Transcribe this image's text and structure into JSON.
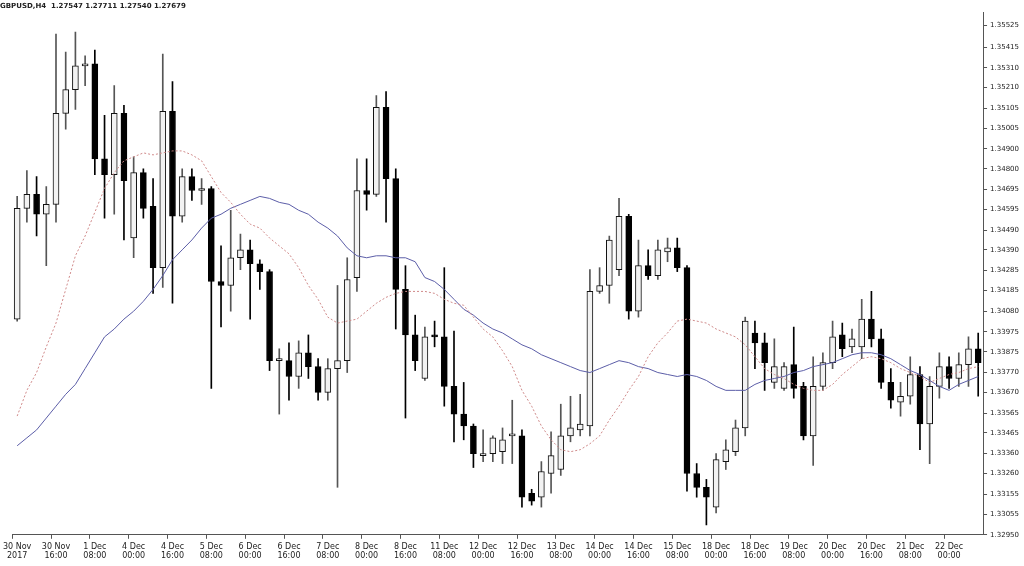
{
  "chart_data": {
    "type": "candlestick",
    "title": "GBPUSD,H4  1.27547 1.27711 1.27540 1.27679",
    "categories": [
      "30 Nov 2017",
      null,
      null,
      null,
      "30 Nov 16:00",
      null,
      null,
      null,
      "1 Dec 08:00",
      null,
      null,
      null,
      "4 Dec 00:00",
      null,
      null,
      null,
      "4 Dec 16:00",
      null,
      null,
      null,
      "5 Dec 08:00",
      null,
      null,
      null,
      "6 Dec 00:00",
      null,
      null,
      null,
      "6 Dec 16:00",
      null,
      null,
      null,
      "7 Dec 08:00",
      null,
      null,
      null,
      "8 Dec 00:00",
      null,
      null,
      null,
      "8 Dec 16:00",
      null,
      null,
      null,
      "11 Dec 08:00",
      null,
      null,
      null,
      "12 Dec 00:00",
      null,
      null,
      null,
      "12 Dec 16:00",
      null,
      null,
      null,
      "13 Dec 08:00",
      null,
      null,
      null,
      "14 Dec 00:00",
      null,
      null,
      null,
      "14 Dec 16:00",
      null,
      null,
      null,
      "15 Dec 08:00",
      null,
      null,
      null,
      "18 Dec 00:00",
      null,
      null,
      null,
      "18 Dec 16:00",
      null,
      null,
      null,
      "19 Dec 08:00",
      null,
      null,
      null,
      "20 Dec 00:00",
      null,
      null,
      null,
      "20 Dec 16:00",
      null,
      null,
      null,
      "21 Dec 08:00",
      null,
      null,
      null,
      "22 Dec 00:00",
      null,
      null,
      null
    ],
    "ohlc": [
      [
        1.3404,
        1.3466,
        1.3403,
        1.346
      ],
      [
        1.346,
        1.3479,
        1.3453,
        1.3467
      ],
      [
        1.3467,
        1.3476,
        1.3446,
        1.3457
      ],
      [
        1.3457,
        1.3471,
        1.3431,
        1.3462
      ],
      [
        1.3462,
        1.3548,
        1.3453,
        1.3508
      ],
      [
        1.3508,
        1.3539,
        1.35,
        1.352
      ],
      [
        1.352,
        1.3549,
        1.351,
        1.3532
      ],
      [
        1.3532,
        1.3537,
        1.3522,
        1.3533
      ],
      [
        1.3533,
        1.354,
        1.3477,
        1.3485
      ],
      [
        1.3485,
        1.3507,
        1.3455,
        1.3477
      ],
      [
        1.3477,
        1.3522,
        1.3457,
        1.3508
      ],
      [
        1.3508,
        1.3512,
        1.3444,
        1.3474
      ],
      [
        1.3445,
        1.3486,
        1.3435,
        1.3478
      ],
      [
        1.3478,
        1.348,
        1.3455,
        1.346
      ],
      [
        1.3461,
        1.3475,
        1.3417,
        1.343
      ],
      [
        1.343,
        1.3538,
        1.342,
        1.3509
      ],
      [
        1.3509,
        1.3524,
        1.3412,
        1.3456
      ],
      [
        1.3456,
        1.348,
        1.3453,
        1.3476
      ],
      [
        1.3476,
        1.348,
        1.3464,
        1.3469
      ],
      [
        1.3469,
        1.3475,
        1.3462,
        1.347
      ],
      [
        1.347,
        1.3471,
        1.3369,
        1.3423
      ],
      [
        1.3423,
        1.3441,
        1.34,
        1.3421
      ],
      [
        1.3421,
        1.3459,
        1.3408,
        1.3435
      ],
      [
        1.3435,
        1.3447,
        1.3429,
        1.3439
      ],
      [
        1.3439,
        1.3444,
        1.3404,
        1.3432
      ],
      [
        1.3432,
        1.3434,
        1.3419,
        1.3428
      ],
      [
        1.3428,
        1.3429,
        1.3378,
        1.3383
      ],
      [
        1.3383,
        1.3389,
        1.3356,
        1.3384
      ],
      [
        1.3383,
        1.3392,
        1.3363,
        1.3375
      ],
      [
        1.3375,
        1.3393,
        1.3369,
        1.3387
      ],
      [
        1.3387,
        1.3396,
        1.3374,
        1.338
      ],
      [
        1.338,
        1.3384,
        1.3363,
        1.3367
      ],
      [
        1.3367,
        1.3384,
        1.3363,
        1.3379
      ],
      [
        1.3379,
        1.3421,
        1.3319,
        1.3383
      ],
      [
        1.3383,
        1.3435,
        1.3377,
        1.3424
      ],
      [
        1.3425,
        1.3485,
        1.3418,
        1.3469
      ],
      [
        1.3469,
        1.3485,
        1.3459,
        1.3467
      ],
      [
        1.3467,
        1.3517,
        1.3466,
        1.3511
      ],
      [
        1.3511,
        1.3519,
        1.3453,
        1.3475
      ],
      [
        1.3475,
        1.348,
        1.3399,
        1.3419
      ],
      [
        1.3419,
        1.3431,
        1.3354,
        1.3396
      ],
      [
        1.3396,
        1.3406,
        1.3378,
        1.3383
      ],
      [
        1.3374,
        1.34,
        1.3373,
        1.3395
      ],
      [
        1.3396,
        1.3403,
        1.339,
        1.3395
      ],
      [
        1.3395,
        1.343,
        1.336,
        1.337
      ],
      [
        1.337,
        1.3398,
        1.3342,
        1.3356
      ],
      [
        1.3356,
        1.3372,
        1.3343,
        1.335
      ],
      [
        1.335,
        1.3351,
        1.3329,
        1.3336
      ],
      [
        1.3335,
        1.3348,
        1.3332,
        1.3336
      ],
      [
        1.3336,
        1.3345,
        1.3332,
        1.3344
      ],
      [
        1.3337,
        1.3349,
        1.3331,
        1.3343
      ],
      [
        1.3345,
        1.3363,
        1.3331,
        1.3346
      ],
      [
        1.3345,
        1.3348,
        1.3309,
        1.3314
      ],
      [
        1.3316,
        1.3318,
        1.331,
        1.3312
      ],
      [
        1.3314,
        1.3332,
        1.3309,
        1.3327
      ],
      [
        1.3326,
        1.3347,
        1.3316,
        1.3335
      ],
      [
        1.3328,
        1.3361,
        1.3325,
        1.3345
      ],
      [
        1.3345,
        1.3365,
        1.3342,
        1.3349
      ],
      [
        1.3348,
        1.3366,
        1.3345,
        1.3351
      ],
      [
        1.335,
        1.3429,
        1.3345,
        1.3418
      ],
      [
        1.3418,
        1.343,
        1.3417,
        1.3421
      ],
      [
        1.3421,
        1.3446,
        1.3412,
        1.3444
      ],
      [
        1.3429,
        1.3465,
        1.3426,
        1.3456
      ],
      [
        1.3456,
        1.3457,
        1.3404,
        1.3408
      ],
      [
        1.3408,
        1.3444,
        1.3405,
        1.3431
      ],
      [
        1.3431,
        1.3439,
        1.3424,
        1.3426
      ],
      [
        1.3426,
        1.3444,
        1.3424,
        1.3439
      ],
      [
        1.3438,
        1.3445,
        1.3433,
        1.344
      ],
      [
        1.344,
        1.3445,
        1.3428,
        1.343
      ],
      [
        1.343,
        1.3431,
        1.3317,
        1.3326
      ],
      [
        1.3326,
        1.3331,
        1.3314,
        1.3319
      ],
      [
        1.3319,
        1.3323,
        1.33,
        1.3314
      ],
      [
        1.3309,
        1.3336,
        1.3306,
        1.3333
      ],
      [
        1.3332,
        1.3343,
        1.3328,
        1.3338
      ],
      [
        1.3337,
        1.3353,
        1.3335,
        1.3349
      ],
      [
        1.3349,
        1.3405,
        1.3345,
        1.3403
      ],
      [
        1.3397,
        1.3403,
        1.3379,
        1.3392
      ],
      [
        1.3392,
        1.3397,
        1.3368,
        1.3382
      ],
      [
        1.3372,
        1.3394,
        1.3369,
        1.338
      ],
      [
        1.3369,
        1.3382,
        1.3368,
        1.338
      ],
      [
        1.3381,
        1.34,
        1.3364,
        1.3369
      ],
      [
        1.337,
        1.3372,
        1.3343,
        1.3345
      ],
      [
        1.3345,
        1.3385,
        1.333,
        1.337
      ],
      [
        1.337,
        1.3387,
        1.3368,
        1.3382
      ],
      [
        1.3382,
        1.3403,
        1.3379,
        1.3395
      ],
      [
        1.3396,
        1.3402,
        1.3385,
        1.3389
      ],
      [
        1.339,
        1.3399,
        1.3387,
        1.3394
      ],
      [
        1.339,
        1.3414,
        1.3384,
        1.3404
      ],
      [
        1.3404,
        1.3418,
        1.339,
        1.3394
      ],
      [
        1.3394,
        1.3399,
        1.3369,
        1.3372
      ],
      [
        1.3372,
        1.3379,
        1.3359,
        1.3363
      ],
      [
        1.3362,
        1.3372,
        1.3355,
        1.3365
      ],
      [
        1.3365,
        1.3385,
        1.3361,
        1.3376
      ],
      [
        1.3376,
        1.338,
        1.3338,
        1.3351
      ],
      [
        1.3351,
        1.3375,
        1.3331,
        1.337
      ],
      [
        1.337,
        1.3387,
        1.3364,
        1.338
      ],
      [
        1.338,
        1.3385,
        1.3369,
        1.3374
      ],
      [
        1.3374,
        1.3387,
        1.337,
        1.3381
      ],
      [
        1.3381,
        1.3395,
        1.337,
        1.3389
      ],
      [
        1.3389,
        1.3397,
        1.3365,
        1.3382
      ]
    ],
    "series": [
      {
        "type": "line",
        "color": "#d08a8a",
        "line_style": "dotted",
        "values": [
          1.3355,
          1.3368,
          1.3377,
          1.339,
          1.3402,
          1.3419,
          1.3436,
          1.3446,
          1.3458,
          1.347,
          1.3478,
          1.3484,
          1.3486,
          1.3488,
          1.3487,
          1.3488,
          1.3489,
          1.3489,
          1.3487,
          1.3484,
          1.3476,
          1.3468,
          1.3463,
          1.3457,
          1.3452,
          1.345,
          1.3445,
          1.3441,
          1.3437,
          1.343,
          1.3421,
          1.3414,
          1.3405,
          1.3402,
          1.3403,
          1.3404,
          1.3408,
          1.3412,
          1.3415,
          1.3417,
          1.3418,
          1.3418,
          1.3418,
          1.3417,
          1.3414,
          1.3412,
          1.3411,
          1.3405,
          1.3399,
          1.3395,
          1.3388,
          1.338,
          1.3368,
          1.336,
          1.335,
          1.3343,
          1.3338,
          1.3337,
          1.3338,
          1.3341,
          1.3345,
          1.3353,
          1.336,
          1.3368,
          1.3375,
          1.3385,
          1.3392,
          1.3397,
          1.3403,
          1.3404,
          1.3403,
          1.3402,
          1.3399,
          1.3397,
          1.3395,
          1.3391,
          1.3385,
          1.3379,
          1.3376,
          1.3374,
          1.3371,
          1.3369,
          1.3368,
          1.3368,
          1.3371,
          1.3376,
          1.338,
          1.3384,
          1.3385,
          1.3384,
          1.3382,
          1.3379,
          1.3377,
          1.3375,
          1.3372,
          1.3374,
          1.3376,
          1.3377,
          1.3379,
          1.338
        ]
      },
      {
        "type": "line",
        "color": "#5c5ea8",
        "values": [
          1.334,
          1.3344,
          1.3348,
          1.3354,
          1.336,
          1.3366,
          1.3371,
          1.3379,
          1.3387,
          1.3395,
          1.3399,
          1.3404,
          1.3408,
          1.3413,
          1.3419,
          1.3426,
          1.3434,
          1.3439,
          1.3444,
          1.345,
          1.3455,
          1.3457,
          1.346,
          1.3462,
          1.3464,
          1.3466,
          1.3465,
          1.3463,
          1.3462,
          1.3459,
          1.3457,
          1.3453,
          1.345,
          1.3446,
          1.344,
          1.3436,
          1.3435,
          1.3436,
          1.3436,
          1.3435,
          1.3435,
          1.3433,
          1.3425,
          1.3423,
          1.3419,
          1.3414,
          1.3409,
          1.3406,
          1.3402,
          1.3399,
          1.3397,
          1.3394,
          1.3391,
          1.3389,
          1.3386,
          1.3384,
          1.3382,
          1.338,
          1.3378,
          1.3377,
          1.3379,
          1.3381,
          1.3383,
          1.3382,
          1.338,
          1.3379,
          1.3377,
          1.3376,
          1.3375,
          1.3376,
          1.3375,
          1.3373,
          1.337,
          1.3368,
          1.3368,
          1.3368,
          1.3371,
          1.3373,
          1.3374,
          1.3375,
          1.3377,
          1.3378,
          1.338,
          1.3381,
          1.3382,
          1.3384,
          1.3386,
          1.3387,
          1.3387,
          1.3386,
          1.3384,
          1.3381,
          1.3378,
          1.3376,
          1.3373,
          1.337,
          1.3368,
          1.3371,
          1.3373,
          1.3375
        ]
      }
    ],
    "ylim": [
      1.3295,
      1.3559
    ],
    "yticks": [
      {
        "value": 1.35525,
        "label": "1.35525"
      },
      {
        "value": 1.35415,
        "label": "1.35415"
      },
      {
        "value": 1.3531,
        "label": "1.35310"
      },
      {
        "value": 1.3521,
        "label": "1.35210"
      },
      {
        "value": 1.35105,
        "label": "1.35105"
      },
      {
        "value": 1.35005,
        "label": "1.35005"
      },
      {
        "value": 1.349,
        "label": "1.34900"
      },
      {
        "value": 1.348,
        "label": "1.34800"
      },
      {
        "value": 1.34695,
        "label": "1.34695"
      },
      {
        "value": 1.34595,
        "label": "1.34595"
      },
      {
        "value": 1.3449,
        "label": "1.34490"
      },
      {
        "value": 1.3439,
        "label": "1.34390"
      },
      {
        "value": 1.34285,
        "label": "1.34285"
      },
      {
        "value": 1.34185,
        "label": "1.34185"
      },
      {
        "value": 1.3408,
        "label": "1.34080"
      },
      {
        "value": 1.33975,
        "label": "1.33975"
      },
      {
        "value": 1.33875,
        "label": "1.33875"
      },
      {
        "value": 1.3377,
        "label": "1.33770"
      },
      {
        "value": 1.3367,
        "label": "1.33670"
      },
      {
        "value": 1.33565,
        "label": "1.33565"
      },
      {
        "value": 1.33465,
        "label": "1.33465"
      },
      {
        "value": 1.3336,
        "label": "1.33360"
      },
      {
        "value": 1.3326,
        "label": "1.33260"
      },
      {
        "value": 1.33155,
        "label": "1.33155"
      },
      {
        "value": 1.33055,
        "label": "1.33055"
      },
      {
        "value": 1.3295,
        "label": "1.32950"
      }
    ]
  }
}
